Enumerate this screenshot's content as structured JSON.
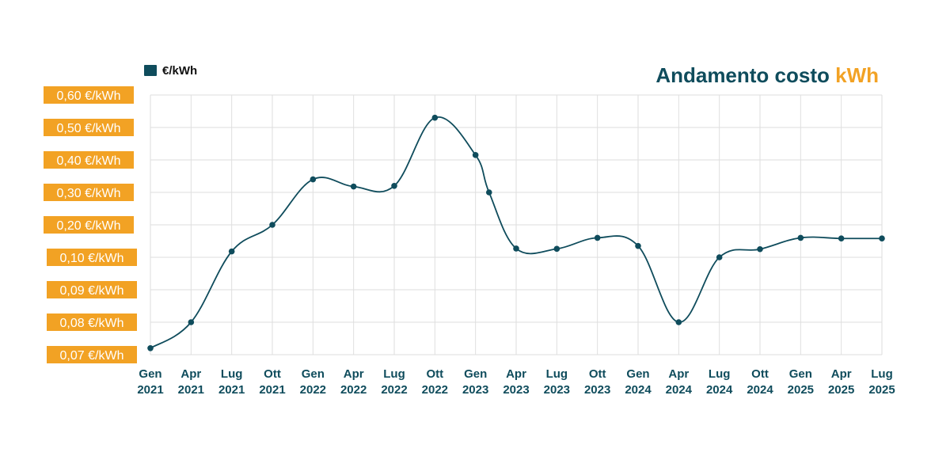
{
  "colors": {
    "series": "#0f4c5c",
    "accent": "#f2a224",
    "grid": "#dedede"
  },
  "title": {
    "part1": "Andamento costo ",
    "part2": "kWh"
  },
  "legend": {
    "label": "€/kWh"
  },
  "chart_data": {
    "type": "line",
    "title": "Andamento costo kWh",
    "legend": [
      "€/kWh"
    ],
    "legend_position": "top-left",
    "grid": true,
    "y_scale": "categorical",
    "y_ticks": [
      "0,07 €/kWh",
      "0,08 €/kWh",
      "0,09 €/kWh",
      "0,10 €/kWh",
      "0,20 €/kWh",
      "0,30 €/kWh",
      "0,40 €/kWh",
      "0,50 €/kWh",
      "0,60 €/kWh"
    ],
    "y_tick_values": [
      0.07,
      0.08,
      0.09,
      0.1,
      0.2,
      0.3,
      0.4,
      0.5,
      0.6
    ],
    "x_ticks": [
      {
        "month": "Gen",
        "year": "2021"
      },
      {
        "month": "Apr",
        "year": "2021"
      },
      {
        "month": "Lug",
        "year": "2021"
      },
      {
        "month": "Ott",
        "year": "2021"
      },
      {
        "month": "Gen",
        "year": "2022"
      },
      {
        "month": "Apr",
        "year": "2022"
      },
      {
        "month": "Lug",
        "year": "2022"
      },
      {
        "month": "Ott",
        "year": "2022"
      },
      {
        "month": "Gen",
        "year": "2023"
      },
      {
        "month": "Apr",
        "year": "2023"
      },
      {
        "month": "Lug",
        "year": "2023"
      },
      {
        "month": "Ott",
        "year": "2023"
      },
      {
        "month": "Gen",
        "year": "2024"
      },
      {
        "month": "Apr",
        "year": "2024"
      },
      {
        "month": "Lug",
        "year": "2024"
      },
      {
        "month": "Ott",
        "year": "2024"
      },
      {
        "month": "Gen",
        "year": "2025"
      },
      {
        "month": "Apr",
        "year": "2025"
      },
      {
        "month": "Lug",
        "year": "2025"
      }
    ],
    "series": [
      {
        "name": "€/kWh",
        "points": [
          {
            "x": "2021-01",
            "y": 0.072
          },
          {
            "x": "2021-04",
            "y": 0.08
          },
          {
            "x": "2021-07",
            "y": 0.118
          },
          {
            "x": "2021-10",
            "y": 0.2
          },
          {
            "x": "2022-01",
            "y": 0.34
          },
          {
            "x": "2022-04",
            "y": 0.318
          },
          {
            "x": "2022-07",
            "y": 0.32
          },
          {
            "x": "2022-10",
            "y": 0.53
          },
          {
            "x": "2023-01",
            "y": 0.415
          },
          {
            "x": "2023-02",
            "y": 0.3
          },
          {
            "x": "2023-04",
            "y": 0.127
          },
          {
            "x": "2023-07",
            "y": 0.126
          },
          {
            "x": "2023-10",
            "y": 0.16
          },
          {
            "x": "2024-01",
            "y": 0.135
          },
          {
            "x": "2024-04",
            "y": 0.08
          },
          {
            "x": "2024-07",
            "y": 0.1
          },
          {
            "x": "2024-10",
            "y": 0.125
          },
          {
            "x": "2025-01",
            "y": 0.16
          },
          {
            "x": "2025-04",
            "y": 0.158
          },
          {
            "x": "2025-07",
            "y": 0.158
          }
        ]
      }
    ]
  }
}
